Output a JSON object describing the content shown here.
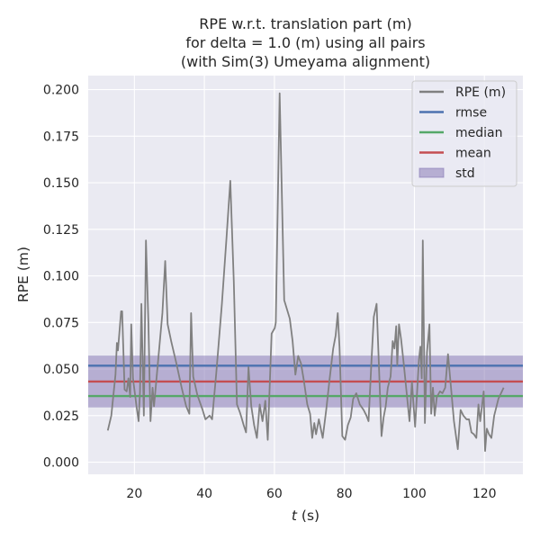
{
  "chart_data": {
    "type": "line",
    "title_lines": [
      "RPE w.r.t. translation part (m)",
      "for delta = 1.0 (m) using all pairs",
      "(with Sim(3) Umeyama alignment)"
    ],
    "xlabel_var": "t",
    "xlabel_unit": " (s)",
    "ylabel": "RPE (m)",
    "xlim": [
      6.8,
      131.0
    ],
    "ylim": [
      -0.0065,
      0.2075
    ],
    "x_ticks": [
      20,
      40,
      60,
      80,
      100,
      120
    ],
    "y_ticks": [
      0.0,
      0.025,
      0.05,
      0.075,
      0.1,
      0.125,
      0.15,
      0.175,
      0.2
    ],
    "y_tick_labels": [
      "0.000",
      "0.025",
      "0.050",
      "0.075",
      "0.100",
      "0.125",
      "0.150",
      "0.175",
      "0.200"
    ],
    "x_tick_labels": [
      "20",
      "40",
      "60",
      "80",
      "100",
      "120"
    ],
    "grid": true,
    "legend_position": "top-right",
    "legend": [
      {
        "key": "rpe",
        "label": "RPE (m)",
        "kind": "line",
        "color": "#808080"
      },
      {
        "key": "rmse",
        "label": "rmse",
        "kind": "line",
        "color": "#4c72b0"
      },
      {
        "key": "median",
        "label": "median",
        "kind": "line",
        "color": "#55a868"
      },
      {
        "key": "mean",
        "label": "mean",
        "kind": "line",
        "color": "#c44e52"
      },
      {
        "key": "std",
        "label": "std",
        "kind": "patch",
        "color": "#8172b2"
      }
    ],
    "stats": {
      "rmse": 0.0518,
      "median": 0.0355,
      "mean": 0.0433,
      "std_low": 0.0294,
      "std_high": 0.0572
    },
    "series": [
      {
        "name": "RPE (m)",
        "color": "#808080",
        "x": [
          12.4,
          13.4,
          14.6,
          15.0,
          15.3,
          16.2,
          16.5,
          17.2,
          17.8,
          18.3,
          18.8,
          19.1,
          19.6,
          20.6,
          21.2,
          21.6,
          22.0,
          22.7,
          23.3,
          24.0,
          24.6,
          25.2,
          25.6,
          26.8,
          28.0,
          28.8,
          29.5,
          30.5,
          32.0,
          33.5,
          34.8,
          35.7,
          36.2,
          36.8,
          38.0,
          39.5,
          40.3,
          41.5,
          42.2,
          43.4,
          45.0,
          46.3,
          47.4,
          48.4,
          49.3,
          50.1,
          50.6,
          51.2,
          51.9,
          52.6,
          53.4,
          54.2,
          55.0,
          55.8,
          56.6,
          57.4,
          58.1,
          59.2,
          60.1,
          60.4,
          61.5,
          62.8,
          63.6,
          64.4,
          65.2,
          66.0,
          66.8,
          67.6,
          68.4,
          69.4,
          70.2,
          70.8,
          71.4,
          71.9,
          72.7,
          73.8,
          74.8,
          75.8,
          76.8,
          77.5,
          78.1,
          78.6,
          79.4,
          80.2,
          81.0,
          81.8,
          82.5,
          83.4,
          84.4,
          85.5,
          86.3,
          86.9,
          87.7,
          88.4,
          89.2,
          89.9,
          90.6,
          91.2,
          91.8,
          92.4,
          93.2,
          93.8,
          94.3,
          94.8,
          95.1,
          95.6,
          96.2,
          97.0,
          97.8,
          98.6,
          99.3,
          100.2,
          101.3,
          101.7,
          102.1,
          102.4,
          103.0,
          103.6,
          104.3,
          104.8,
          105.3,
          105.8,
          106.4,
          107.3,
          108.0,
          108.8,
          109.6,
          110.6,
          111.3,
          112.4,
          113.2,
          114.0,
          114.9,
          115.6,
          116.3,
          117.0,
          117.7,
          118.3,
          118.8,
          119.3,
          119.8,
          120.2,
          120.7,
          121.3,
          122.0,
          122.8,
          124.0,
          125.5
        ],
        "y": [
          0.017,
          0.025,
          0.047,
          0.064,
          0.06,
          0.081,
          0.081,
          0.039,
          0.038,
          0.045,
          0.035,
          0.074,
          0.045,
          0.03,
          0.022,
          0.038,
          0.085,
          0.025,
          0.119,
          0.075,
          0.022,
          0.04,
          0.03,
          0.055,
          0.08,
          0.108,
          0.074,
          0.065,
          0.053,
          0.04,
          0.03,
          0.026,
          0.08,
          0.046,
          0.036,
          0.028,
          0.023,
          0.025,
          0.023,
          0.048,
          0.085,
          0.12,
          0.151,
          0.097,
          0.031,
          0.027,
          0.024,
          0.02,
          0.016,
          0.051,
          0.03,
          0.02,
          0.013,
          0.031,
          0.022,
          0.033,
          0.012,
          0.069,
          0.072,
          0.075,
          0.198,
          0.087,
          0.082,
          0.077,
          0.065,
          0.047,
          0.057,
          0.053,
          0.044,
          0.031,
          0.026,
          0.013,
          0.021,
          0.015,
          0.023,
          0.013,
          0.028,
          0.045,
          0.061,
          0.068,
          0.08,
          0.062,
          0.014,
          0.012,
          0.02,
          0.024,
          0.034,
          0.037,
          0.031,
          0.028,
          0.025,
          0.022,
          0.053,
          0.078,
          0.085,
          0.05,
          0.014,
          0.024,
          0.03,
          0.04,
          0.046,
          0.065,
          0.061,
          0.073,
          0.052,
          0.074,
          0.066,
          0.052,
          0.037,
          0.022,
          0.043,
          0.019,
          0.055,
          0.062,
          0.045,
          0.119,
          0.021,
          0.059,
          0.074,
          0.026,
          0.04,
          0.025,
          0.035,
          0.038,
          0.037,
          0.04,
          0.058,
          0.037,
          0.022,
          0.007,
          0.028,
          0.025,
          0.023,
          0.023,
          0.016,
          0.015,
          0.013,
          0.031,
          0.022,
          0.03,
          0.038,
          0.006,
          0.018,
          0.015,
          0.013,
          0.025,
          0.034,
          0.04
        ]
      }
    ]
  }
}
